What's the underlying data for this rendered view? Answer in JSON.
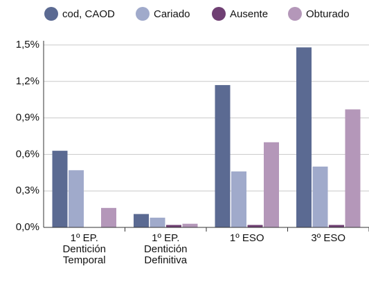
{
  "chart_data": {
    "type": "bar",
    "categories": [
      "1º EP.\nDentición\nTemporal",
      "1º EP.\nDentición\nDefinitiva",
      "1º ESO",
      "3º ESO"
    ],
    "series": [
      {
        "name": "cod, CAOD",
        "color": "#5b6a92",
        "values": [
          0.63,
          0.11,
          1.17,
          1.48
        ]
      },
      {
        "name": "Cariado",
        "color": "#a0aacb",
        "values": [
          0.47,
          0.08,
          0.46,
          0.5
        ]
      },
      {
        "name": "Ausente",
        "color": "#6f3f73",
        "values": [
          0.0,
          0.02,
          0.02,
          0.02
        ]
      },
      {
        "name": "Obturado",
        "color": "#b497b9",
        "values": [
          0.16,
          0.03,
          0.7,
          0.97
        ]
      }
    ],
    "ylim": [
      0,
      1.5
    ],
    "yticks": [
      {
        "value": 0,
        "label": "0,0%"
      },
      {
        "value": 0.3,
        "label": "0,3%"
      },
      {
        "value": 0.6,
        "label": "0,6%"
      },
      {
        "value": 0.9,
        "label": "0,9%"
      },
      {
        "value": 1.2,
        "label": "1,2%"
      },
      {
        "value": 1.5,
        "label": "1,5%"
      }
    ],
    "grid": true
  }
}
